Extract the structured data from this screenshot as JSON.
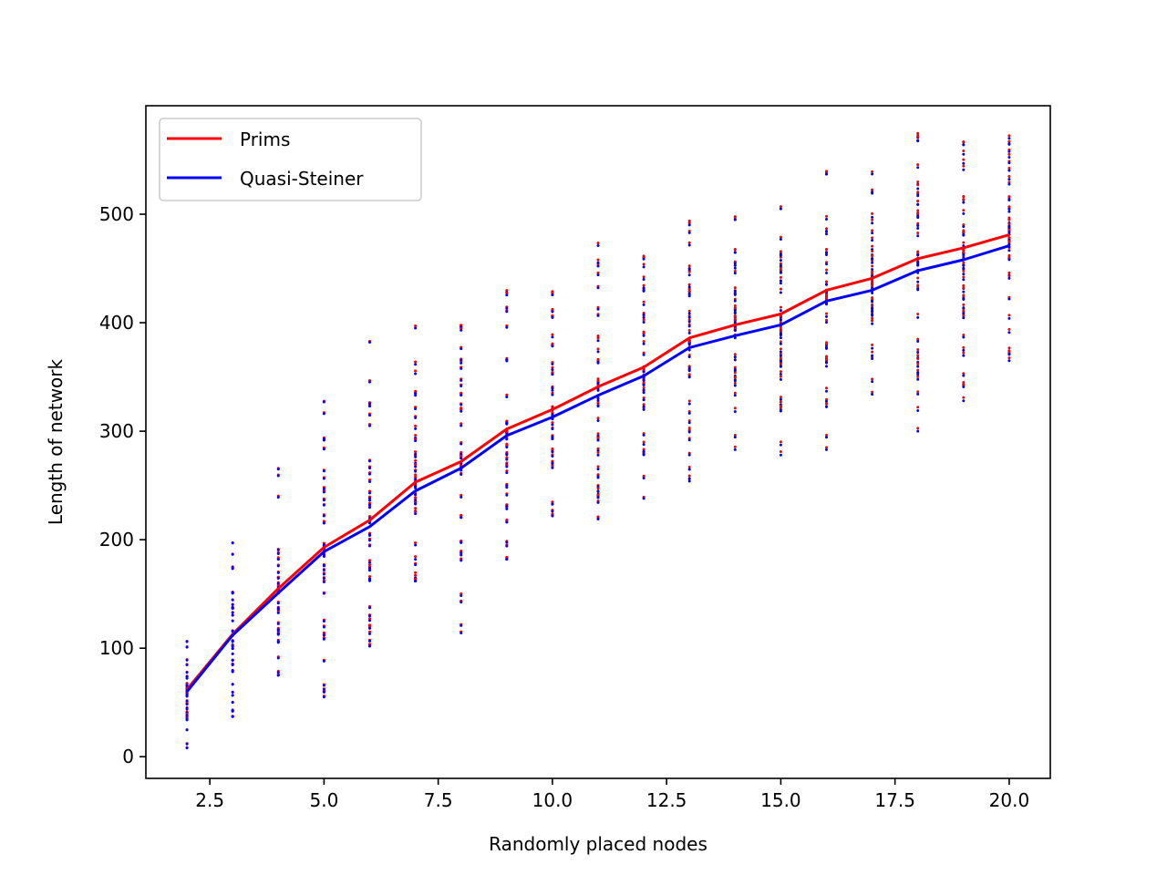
{
  "chart_data": {
    "type": "line",
    "title": "",
    "xlabel": "Randomly placed nodes",
    "ylabel": "Length of network",
    "xlim": [
      1.1,
      20.9
    ],
    "ylim": [
      -20,
      600
    ],
    "xticks": [
      "2.5",
      "5.0",
      "7.5",
      "10.0",
      "12.5",
      "15.0",
      "17.5",
      "20.0"
    ],
    "yticks": [
      "0",
      "100",
      "200",
      "300",
      "400",
      "500"
    ],
    "grid": false,
    "legend": {
      "placement": "top-left"
    },
    "x": [
      2,
      3,
      4,
      5,
      6,
      7,
      8,
      9,
      10,
      11,
      12,
      13,
      14,
      15,
      16,
      17,
      18,
      19,
      20
    ],
    "series": [
      {
        "name": "Prims",
        "color": "#ff0000",
        "values": [
          62,
          113,
          155,
          193,
          218,
          253,
          272,
          302,
          320,
          341,
          359,
          386,
          398,
          408,
          430,
          441,
          459,
          469,
          481
        ]
      },
      {
        "name": "Quasi-Steiner",
        "color": "#0000ff",
        "values": [
          60,
          112,
          151,
          189,
          212,
          245,
          266,
          296,
          313,
          333,
          351,
          377,
          388,
          398,
          420,
          430,
          448,
          458,
          471
        ]
      }
    ],
    "scatter_ranges": [
      {
        "x": 2,
        "min": 8,
        "max": 106
      },
      {
        "x": 3,
        "min": 37,
        "max": 197
      },
      {
        "x": 4,
        "min": 75,
        "max": 265
      },
      {
        "x": 5,
        "min": 55,
        "max": 327
      },
      {
        "x": 6,
        "min": 102,
        "max": 382
      },
      {
        "x": 7,
        "min": 162,
        "max": 395
      },
      {
        "x": 8,
        "min": 114,
        "max": 396
      },
      {
        "x": 9,
        "min": 182,
        "max": 428
      },
      {
        "x": 10,
        "min": 222,
        "max": 427
      },
      {
        "x": 11,
        "min": 219,
        "max": 471
      },
      {
        "x": 12,
        "min": 238,
        "max": 460
      },
      {
        "x": 13,
        "min": 254,
        "max": 492
      },
      {
        "x": 14,
        "min": 283,
        "max": 495
      },
      {
        "x": 15,
        "min": 278,
        "max": 505
      },
      {
        "x": 16,
        "min": 283,
        "max": 537
      },
      {
        "x": 17,
        "min": 334,
        "max": 537
      },
      {
        "x": 18,
        "min": 300,
        "max": 571
      },
      {
        "x": 19,
        "min": 328,
        "max": 564
      },
      {
        "x": 20,
        "min": 365,
        "max": 570
      }
    ]
  }
}
